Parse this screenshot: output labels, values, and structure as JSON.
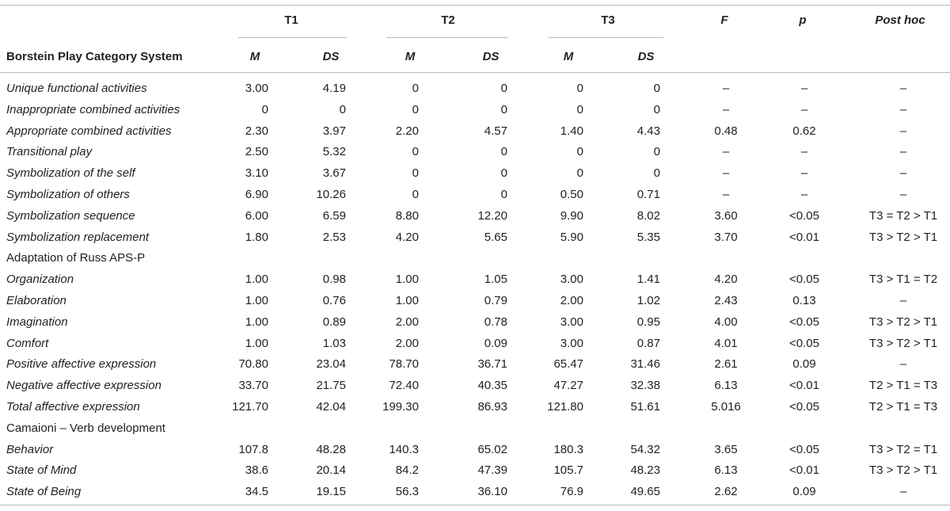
{
  "table": {
    "header": {
      "row_label": "Borstein Play Category System",
      "groups": [
        "T1",
        "T2",
        "T3"
      ],
      "stats": [
        "F",
        "p",
        "Post hoc"
      ],
      "sub": [
        "M",
        "DS",
        "M",
        "DS",
        "M",
        "DS"
      ]
    },
    "rows": [
      {
        "type": "data",
        "label": "Unique functional activities",
        "cells": [
          "3.00",
          "4.19",
          "0",
          "0",
          "0",
          "0",
          "–",
          "–",
          "–"
        ]
      },
      {
        "type": "data",
        "label": "Inappropriate combined activities",
        "cells": [
          "0",
          "0",
          "0",
          "0",
          "0",
          "0",
          "–",
          "–",
          "–"
        ]
      },
      {
        "type": "data",
        "label": "Appropriate combined activities",
        "cells": [
          "2.30",
          "3.97",
          "2.20",
          "4.57",
          "1.40",
          "4.43",
          "0.48",
          "0.62",
          "–"
        ]
      },
      {
        "type": "data",
        "label": "Transitional play",
        "cells": [
          "2.50",
          "5.32",
          "0",
          "0",
          "0",
          "0",
          "–",
          "–",
          "–"
        ]
      },
      {
        "type": "data",
        "label": "Symbolization of the self",
        "cells": [
          "3.10",
          "3.67",
          "0",
          "0",
          "0",
          "0",
          "–",
          "–",
          "–"
        ]
      },
      {
        "type": "data",
        "label": "Symbolization of others",
        "cells": [
          "6.90",
          "10.26",
          "0",
          "0",
          "0.50",
          "0.71",
          "–",
          "–",
          "–"
        ]
      },
      {
        "type": "data",
        "label": "Symbolization sequence",
        "cells": [
          "6.00",
          "6.59",
          "8.80",
          "12.20",
          "9.90",
          "8.02",
          "3.60",
          "<0.05",
          "T3 = T2 > T1"
        ]
      },
      {
        "type": "data",
        "label": "Symbolization replacement",
        "cells": [
          "1.80",
          "2.53",
          "4.20",
          "5.65",
          "5.90",
          "5.35",
          "3.70",
          "<0.01",
          "T3 > T2 > T1"
        ]
      },
      {
        "type": "section",
        "label": "Adaptation of Russ APS-P"
      },
      {
        "type": "data",
        "label": "Organization",
        "cells": [
          "1.00",
          "0.98",
          "1.00",
          "1.05",
          "3.00",
          "1.41",
          "4.20",
          "<0.05",
          "T3 > T1 = T2"
        ]
      },
      {
        "type": "data",
        "label": "Elaboration",
        "cells": [
          "1.00",
          "0.76",
          "1.00",
          "0.79",
          "2.00",
          "1.02",
          "2.43",
          "0.13",
          "–"
        ]
      },
      {
        "type": "data",
        "label": "Imagination",
        "cells": [
          "1.00",
          "0.89",
          "2.00",
          "0.78",
          "3.00",
          "0.95",
          "4.00",
          "<0.05",
          "T3 > T2 > T1"
        ]
      },
      {
        "type": "data",
        "label": "Comfort",
        "cells": [
          "1.00",
          "1.03",
          "2.00",
          "0.09",
          "3.00",
          "0.87",
          "4.01",
          "<0.05",
          "T3 > T2 > T1"
        ]
      },
      {
        "type": "data",
        "label": "Positive affective expression",
        "cells": [
          "70.80",
          "23.04",
          "78.70",
          "36.71",
          "65.47",
          "31.46",
          "2.61",
          "0.09",
          "–"
        ]
      },
      {
        "type": "data",
        "label": "Negative affective expression",
        "cells": [
          "33.70",
          "21.75",
          "72.40",
          "40.35",
          "47.27",
          "32.38",
          "6.13",
          "<0.01",
          "T2 > T1 = T3"
        ]
      },
      {
        "type": "data",
        "label": "Total affective expression",
        "cells": [
          "121.70",
          "42.04",
          "199.30",
          "86.93",
          "121.80",
          "51.61",
          "5.016",
          "<0.05",
          "T2 > T1 = T3"
        ]
      },
      {
        "type": "section",
        "label": "Camaioni – Verb development"
      },
      {
        "type": "data",
        "label": "Behavior",
        "cells": [
          "107.8",
          "48.28",
          "140.3",
          "65.02",
          "180.3",
          "54.32",
          "3.65",
          "<0.05",
          "T3 > T2 = T1"
        ]
      },
      {
        "type": "data",
        "label": "State of Mind",
        "cells": [
          "38.6",
          "20.14",
          "84.2",
          "47.39",
          "105.7",
          "48.23",
          "6.13",
          "<0.01",
          "T3 > T2 > T1"
        ]
      },
      {
        "type": "data",
        "label": "State of Being",
        "cells": [
          "34.5",
          "19.15",
          "56.3",
          "36.10",
          "76.9",
          "49.65",
          "2.62",
          "0.09",
          "–"
        ]
      }
    ]
  }
}
